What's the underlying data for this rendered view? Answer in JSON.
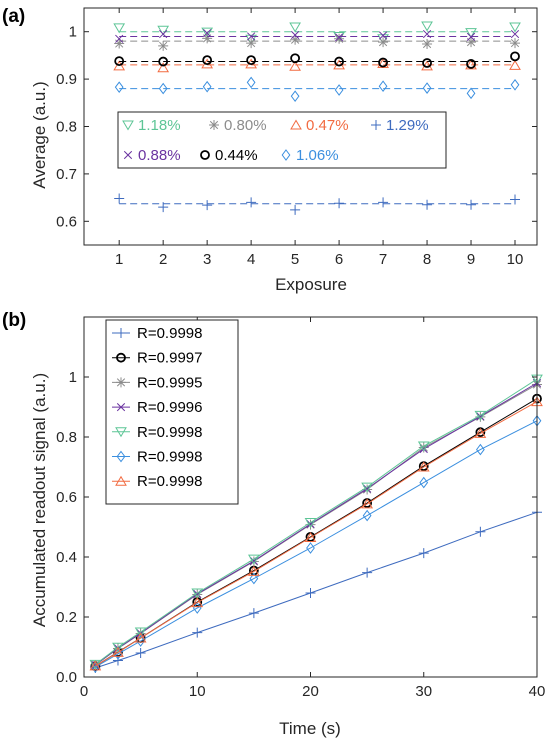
{
  "chart_data": [
    {
      "panel_label": "(a)",
      "type": "scatter",
      "xlabel": "Exposure",
      "ylabel": "Average (a.u.)",
      "xlim": [
        0.2,
        10.5
      ],
      "ylim": [
        0.55,
        1.05
      ],
      "xticks": [
        1,
        2,
        3,
        4,
        5,
        6,
        7,
        8,
        9,
        10
      ],
      "yticks": [
        0.6,
        0.7,
        0.8,
        0.9,
        1
      ],
      "ytick_labels": [
        "0.6",
        "0.7",
        "0.8",
        "0.9",
        "1"
      ],
      "grid": false,
      "legend_position": "center",
      "x": [
        1,
        2,
        3,
        4,
        5,
        6,
        7,
        8,
        9,
        10
      ],
      "series": [
        {
          "name": "1.18%",
          "marker": "triangle-down",
          "color": "#5dc596",
          "mean": 1.0,
          "values": [
            1.008,
            1.003,
            0.999,
            0.984,
            1.01,
            0.99,
            0.985,
            1.012,
            0.998,
            1.01
          ]
        },
        {
          "name": "0.80%",
          "marker": "asterisk",
          "color": "#8c8c8c",
          "mean": 0.98,
          "values": [
            0.975,
            0.97,
            0.986,
            0.976,
            0.983,
            0.985,
            0.978,
            0.974,
            0.978,
            0.976
          ]
        },
        {
          "name": "0.47%",
          "marker": "triangle-up",
          "color": "#f26b41",
          "mean": 0.93,
          "values": [
            0.928,
            0.924,
            0.932,
            0.932,
            0.927,
            0.93,
            0.933,
            0.928,
            0.93,
            0.929
          ]
        },
        {
          "name": "1.29%",
          "marker": "plus",
          "color": "#3e6bbf",
          "mean": 0.637,
          "values": [
            0.648,
            0.63,
            0.634,
            0.64,
            0.624,
            0.638,
            0.64,
            0.635,
            0.635,
            0.646
          ]
        },
        {
          "name": "0.88%",
          "marker": "cross",
          "color": "#6a33a0",
          "mean": 0.99,
          "values": [
            0.985,
            0.995,
            0.997,
            0.99,
            0.993,
            0.988,
            0.992,
            0.995,
            0.989,
            0.995
          ]
        },
        {
          "name": "0.44%",
          "marker": "circle",
          "color": "#000000",
          "mean": 0.937,
          "values": [
            0.938,
            0.937,
            0.94,
            0.94,
            0.944,
            0.937,
            0.935,
            0.934,
            0.932,
            0.948
          ]
        },
        {
          "name": "1.06%",
          "marker": "diamond",
          "color": "#3b8fdf",
          "mean": 0.88,
          "values": [
            0.883,
            0.88,
            0.884,
            0.893,
            0.864,
            0.877,
            0.885,
            0.881,
            0.87,
            0.888
          ]
        }
      ]
    },
    {
      "panel_label": "(b)",
      "type": "line",
      "xlabel": "Time (s)",
      "ylabel": "Accumulated readout signal (a.u.)",
      "xlim": [
        0,
        40
      ],
      "ylim": [
        0,
        1.2
      ],
      "xticks": [
        0,
        10,
        20,
        30,
        40
      ],
      "yticks": [
        0,
        0.2,
        0.4,
        0.6,
        0.8,
        1
      ],
      "ytick_labels": [
        "0.0",
        "0.2",
        "0.4",
        "0.6",
        "0.8",
        "1"
      ],
      "grid": false,
      "legend_position": "top-left",
      "x": [
        1,
        3,
        5,
        10,
        15,
        20,
        25,
        30,
        35,
        40
      ],
      "series": [
        {
          "name": "R=0.9998",
          "marker": "plus",
          "color": "#3e6bbf",
          "values": [
            0.03,
            0.055,
            0.08,
            0.148,
            0.213,
            0.28,
            0.348,
            0.413,
            0.484,
            0.549
          ]
        },
        {
          "name": "R=0.9997",
          "marker": "circle",
          "color": "#000000",
          "values": [
            0.036,
            0.083,
            0.13,
            0.25,
            0.355,
            0.467,
            0.58,
            0.703,
            0.816,
            0.928
          ]
        },
        {
          "name": "R=0.9995",
          "marker": "asterisk",
          "color": "#8c8c8c",
          "values": [
            0.04,
            0.095,
            0.145,
            0.275,
            0.385,
            0.508,
            0.625,
            0.765,
            0.867,
            0.975
          ]
        },
        {
          "name": "R=0.9996",
          "marker": "cross",
          "color": "#6a33a0",
          "values": [
            0.04,
            0.096,
            0.146,
            0.277,
            0.387,
            0.51,
            0.628,
            0.76,
            0.869,
            0.98
          ]
        },
        {
          "name": "R=0.9998",
          "marker": "triangle-down",
          "color": "#5dc596",
          "values": [
            0.042,
            0.099,
            0.15,
            0.28,
            0.393,
            0.515,
            0.633,
            0.77,
            0.872,
            0.993
          ]
        },
        {
          "name": "R=0.9998",
          "marker": "diamond",
          "color": "#3b8fdf",
          "values": [
            0.033,
            0.077,
            0.12,
            0.23,
            0.328,
            0.43,
            0.538,
            0.648,
            0.758,
            0.854
          ]
        },
        {
          "name": "R=0.9998",
          "marker": "triangle-up",
          "color": "#f26b41",
          "values": [
            0.037,
            0.082,
            0.13,
            0.248,
            0.352,
            0.465,
            0.577,
            0.7,
            0.812,
            0.918
          ]
        }
      ]
    }
  ]
}
